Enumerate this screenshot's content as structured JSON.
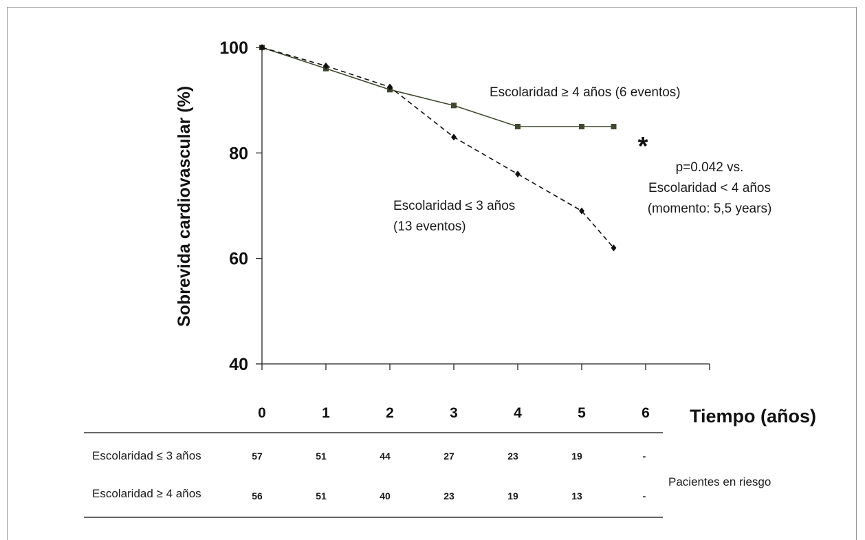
{
  "chart_data": {
    "type": "line",
    "ylabel": "Sobrevida cardiovascular (%)",
    "xlabel": "Tiempo (años)",
    "yticks": [
      100,
      80,
      60,
      40
    ],
    "xticks": [
      0,
      1,
      2,
      3,
      4,
      5,
      6
    ],
    "ylim": [
      40,
      100
    ],
    "xlim": [
      0,
      7
    ],
    "grid": false,
    "series": [
      {
        "name": "Escolaridad ≥ 4 años (6 eventos)",
        "style": "solid",
        "marker": "square",
        "color": "#3d4a2e",
        "points": [
          [
            0,
            100
          ],
          [
            1,
            96
          ],
          [
            2,
            92
          ],
          [
            3,
            89
          ],
          [
            4,
            85
          ],
          [
            5,
            85
          ],
          [
            5.5,
            85
          ]
        ]
      },
      {
        "name": "Escolaridad ≤ 3 años",
        "name_line2": "(13 eventos)",
        "style": "dashed",
        "marker": "diamond",
        "color": "#111111",
        "points": [
          [
            0,
            100
          ],
          [
            1,
            96.5
          ],
          [
            2,
            92.5
          ],
          [
            3,
            83
          ],
          [
            4,
            76
          ],
          [
            5,
            69
          ],
          [
            5.5,
            62
          ]
        ]
      }
    ],
    "annotations": {
      "star": "*",
      "pvalue_lines": [
        "p=0.042 vs.",
        "Escolaridad < 4 años",
        "(momento: 5,5 years)"
      ]
    },
    "risk_table": {
      "rows": [
        {
          "label": "Escolaridad  ≤ 3 años",
          "values": [
            "57",
            "51",
            "44",
            "27",
            "23",
            "19",
            "-"
          ]
        },
        {
          "label": "Escolaridad ≥ 4 años",
          "values": [
            "56",
            "51",
            "40",
            "23",
            "19",
            "13",
            "-"
          ]
        }
      ],
      "caption": "Pacientes en riesgo"
    }
  }
}
